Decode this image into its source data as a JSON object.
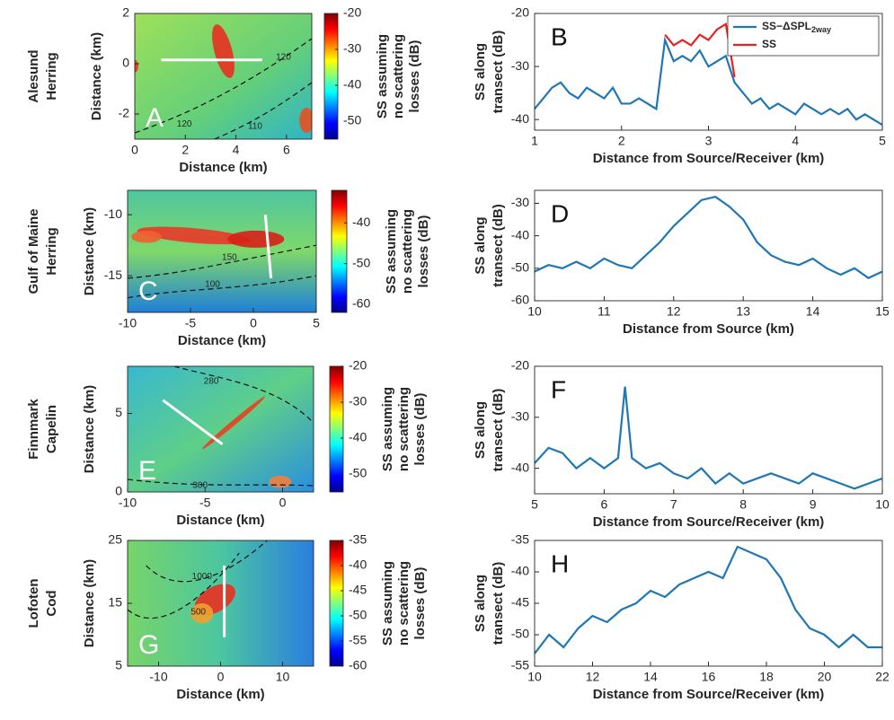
{
  "chart_data": [
    {
      "type": "heatmap",
      "panel": "A",
      "row_label": [
        "Alesund",
        "Herring"
      ],
      "xlabel": "Distance (km)",
      "ylabel": "Distance (km)",
      "xlim": [
        0,
        7
      ],
      "xticks": [
        0,
        2,
        4,
        6
      ],
      "ylim": [
        -3,
        2
      ],
      "yticks": [
        -2,
        0,
        2
      ],
      "clim": [
        -55,
        -20
      ],
      "cticks": [
        -20,
        -30,
        -40,
        -50
      ],
      "colorbar_label": [
        "SS assuming",
        "no scattering",
        "losses (dB)"
      ],
      "annotations": [
        "120",
        "120",
        "110"
      ]
    },
    {
      "type": "line",
      "panel": "B",
      "xlabel": "Distance from Source/Receiver (km)",
      "ylabel": [
        "SS along",
        "transect (dB)"
      ],
      "xlim": [
        1,
        5
      ],
      "xticks": [
        1,
        2,
        3,
        4,
        5
      ],
      "ylim": [
        -42,
        -20
      ],
      "yticks": [
        -20,
        -30,
        -40
      ],
      "legend": "upper right",
      "series": [
        {
          "name": "SS−ΔSPL",
          "name_sub": "2way",
          "color": "#1f77b4",
          "x": [
            1.0,
            1.1,
            1.2,
            1.3,
            1.4,
            1.5,
            1.6,
            1.7,
            1.8,
            1.9,
            2.0,
            2.1,
            2.2,
            2.3,
            2.4,
            2.5,
            2.6,
            2.7,
            2.8,
            2.9,
            3.0,
            3.1,
            3.2,
            3.3,
            3.4,
            3.5,
            3.6,
            3.7,
            3.8,
            3.9,
            4.0,
            4.1,
            4.2,
            4.3,
            4.4,
            4.5,
            4.6,
            4.7,
            4.8,
            4.9,
            5.0
          ],
          "values": [
            -38,
            -36,
            -34,
            -33,
            -35,
            -36,
            -34,
            -35,
            -36,
            -34,
            -37,
            -37,
            -36,
            -37,
            -38,
            -25,
            -29,
            -28,
            -29,
            -27,
            -30,
            -29,
            -28,
            -33,
            -35,
            -37,
            -36,
            -38,
            -37,
            -38,
            -39,
            -37,
            -38,
            -39,
            -38,
            -39,
            -38,
            -40,
            -39,
            -40,
            -41
          ]
        },
        {
          "name": "SS",
          "color": "#e8231f",
          "x": [
            2.5,
            2.6,
            2.7,
            2.8,
            2.9,
            3.0,
            3.1,
            3.2,
            3.3
          ],
          "values": [
            -24,
            -26,
            -25,
            -26,
            -24,
            -25,
            -23,
            -22,
            -32
          ]
        }
      ]
    },
    {
      "type": "heatmap",
      "panel": "C",
      "row_label": [
        "Gulf of Maine",
        "Herring"
      ],
      "xlabel": "Distance (km)",
      "ylabel": "Distance (km)",
      "xlim": [
        -10,
        5
      ],
      "xticks": [
        -10,
        -5,
        0,
        5
      ],
      "ylim": [
        -18,
        -8
      ],
      "yticks": [
        -10,
        -15
      ],
      "clim": [
        -62,
        -32
      ],
      "cticks": [
        -40,
        -50,
        -60
      ],
      "colorbar_label": [
        "SS assuming",
        "no scattering",
        "losses (dB)"
      ],
      "annotations": [
        "150",
        "100"
      ]
    },
    {
      "type": "line",
      "panel": "D",
      "xlabel": "Distance from Source (km)",
      "ylabel": [
        "SS along",
        "transect (dB)"
      ],
      "xlim": [
        10,
        15
      ],
      "xticks": [
        10,
        11,
        12,
        13,
        14,
        15
      ],
      "ylim": [
        -60,
        -26
      ],
      "yticks": [
        -30,
        -40,
        -50,
        -60
      ],
      "series": [
        {
          "color": "#1f77b4",
          "x": [
            10,
            10.2,
            10.4,
            10.6,
            10.8,
            11,
            11.2,
            11.4,
            11.6,
            11.8,
            12,
            12.2,
            12.4,
            12.6,
            12.8,
            13,
            13.2,
            13.4,
            13.6,
            13.8,
            14,
            14.2,
            14.4,
            14.6,
            14.8,
            15
          ],
          "values": [
            -51,
            -49,
            -50,
            -48,
            -50,
            -47,
            -49,
            -50,
            -46,
            -42,
            -37,
            -33,
            -29,
            -28,
            -31,
            -35,
            -42,
            -46,
            -48,
            -49,
            -47,
            -50,
            -52,
            -50,
            -53,
            -51
          ]
        }
      ]
    },
    {
      "type": "heatmap",
      "panel": "E",
      "row_label": [
        "Finnmark",
        "Capelin"
      ],
      "xlabel": "Distance (km)",
      "ylabel": "Distance (km)",
      "xlim": [
        -10,
        2
      ],
      "xticks": [
        -10,
        -5,
        0
      ],
      "ylim": [
        0,
        8
      ],
      "yticks": [
        0,
        5
      ],
      "clim": [
        -55,
        -20
      ],
      "cticks": [
        -20,
        -30,
        -40,
        -50
      ],
      "colorbar_label": [
        "SS assuming",
        "no scattering",
        "losses (dB)"
      ],
      "annotations": [
        "280",
        "300"
      ]
    },
    {
      "type": "line",
      "panel": "F",
      "xlabel": "Distance from Source/Receiver (km)",
      "ylabel": [
        "SS along",
        "transect (dB)"
      ],
      "xlim": [
        5,
        10
      ],
      "xticks": [
        5,
        6,
        7,
        8,
        9,
        10
      ],
      "ylim": [
        -45,
        -20
      ],
      "yticks": [
        -20,
        -30,
        -40
      ],
      "series": [
        {
          "color": "#1f77b4",
          "x": [
            5,
            5.2,
            5.4,
            5.6,
            5.8,
            6,
            6.2,
            6.3,
            6.4,
            6.6,
            6.8,
            7,
            7.2,
            7.4,
            7.6,
            7.8,
            8,
            8.2,
            8.4,
            8.6,
            8.8,
            9,
            9.2,
            9.4,
            9.6,
            9.8,
            10
          ],
          "values": [
            -39,
            -36,
            -37,
            -40,
            -38,
            -40,
            -38,
            -24,
            -38,
            -40,
            -39,
            -41,
            -42,
            -40,
            -43,
            -41,
            -43,
            -42,
            -41,
            -42,
            -43,
            -41,
            -42,
            -43,
            -44,
            -43,
            -42
          ]
        }
      ]
    },
    {
      "type": "heatmap",
      "panel": "G",
      "row_label": [
        "Lofoten",
        "Cod"
      ],
      "xlabel": "Distance (km)",
      "ylabel": "Distance (km)",
      "xlim": [
        -15,
        15
      ],
      "xticks": [
        -10,
        0,
        10
      ],
      "ylim": [
        5,
        25
      ],
      "yticks": [
        5,
        15,
        25
      ],
      "clim": [
        -60,
        -35
      ],
      "cticks": [
        -35,
        -40,
        -45,
        -50,
        -55,
        -60
      ],
      "colorbar_label": [
        "SS assuming",
        "no scattering",
        "losses (dB)"
      ],
      "annotations": [
        "1000",
        "500"
      ]
    },
    {
      "type": "line",
      "panel": "H",
      "xlabel": "Distance from Source/Receiver (km)",
      "ylabel": [
        "SS along",
        "transect (dB)"
      ],
      "xlim": [
        10,
        22
      ],
      "xticks": [
        10,
        12,
        14,
        16,
        18,
        20,
        22
      ],
      "ylim": [
        -55,
        -35
      ],
      "yticks": [
        -35,
        -40,
        -45,
        -50,
        -55
      ],
      "series": [
        {
          "color": "#1f77b4",
          "x": [
            10,
            10.5,
            11,
            11.5,
            12,
            12.5,
            13,
            13.5,
            14,
            14.5,
            15,
            15.5,
            16,
            16.5,
            17,
            17.5,
            18,
            18.5,
            19,
            19.5,
            20,
            20.5,
            21,
            21.5,
            22
          ],
          "values": [
            -53,
            -50,
            -52,
            -49,
            -47,
            -48,
            -46,
            -45,
            -43,
            -44,
            -42,
            -41,
            -40,
            -41,
            -36,
            -37,
            -38,
            -41,
            -46,
            -49,
            -50,
            -52,
            -50,
            -52,
            -52
          ]
        }
      ]
    }
  ]
}
